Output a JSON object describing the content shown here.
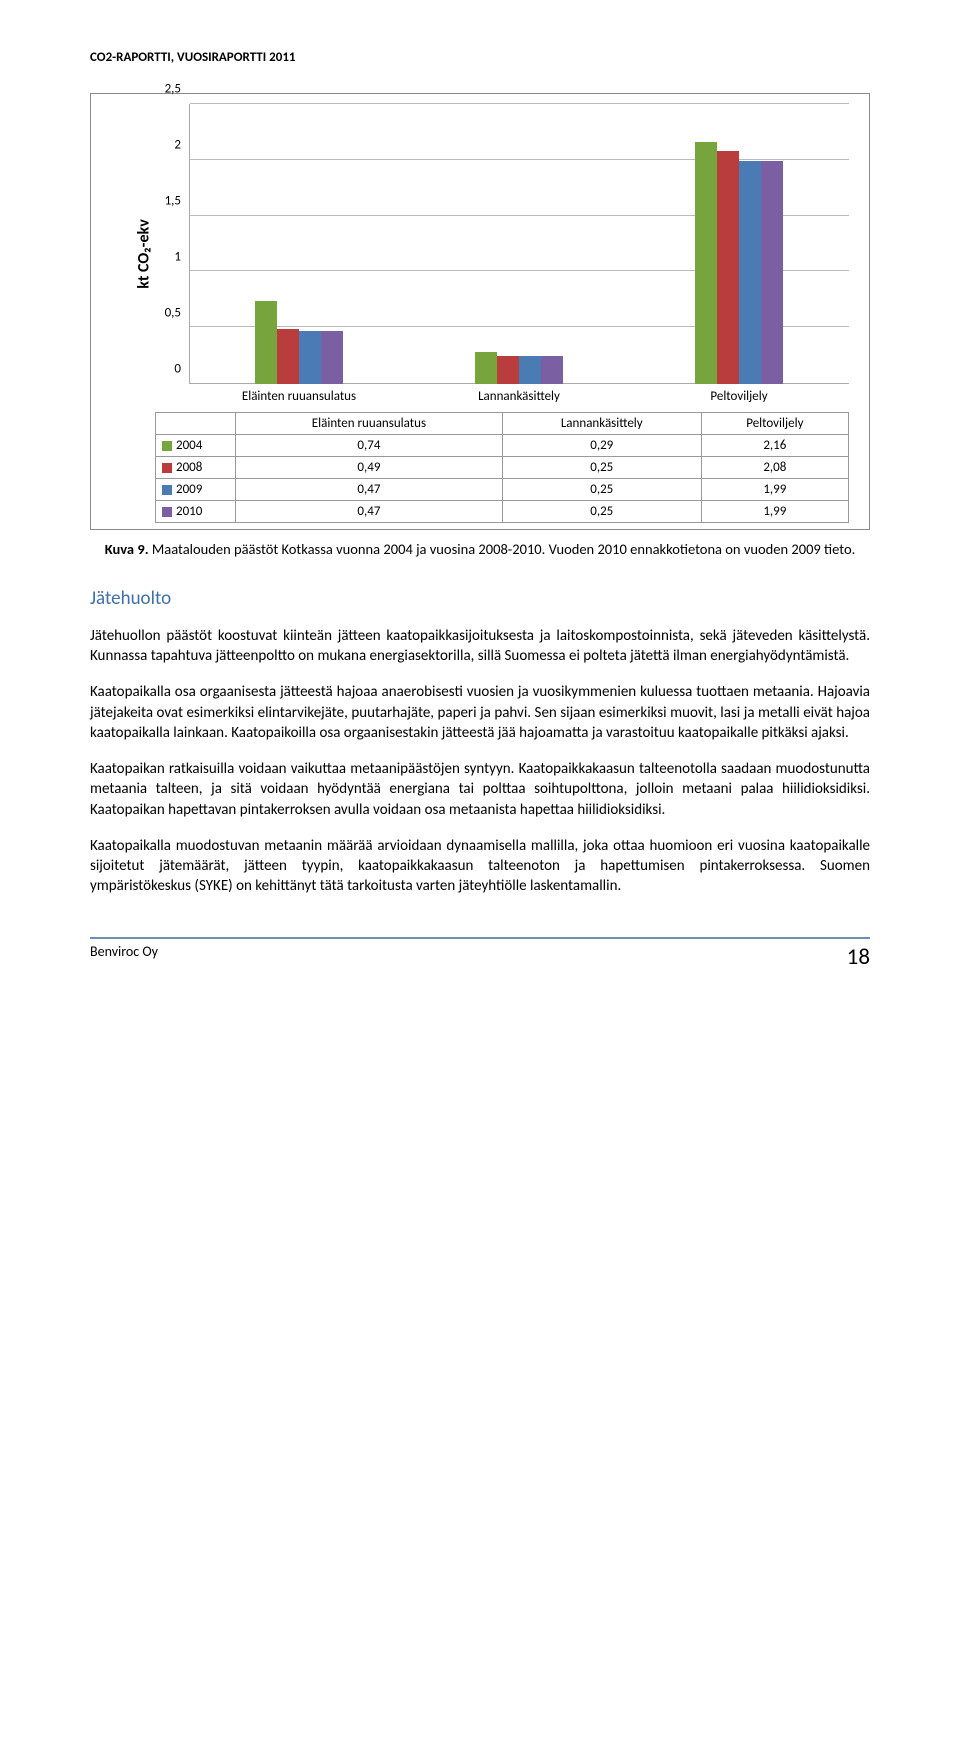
{
  "header": {
    "title": "CO2-RAPORTTI, VUOSIRAPORTTI 2011"
  },
  "chart": {
    "type": "bar",
    "yaxis_label": "kt CO₂-ekv",
    "ylim_max": 2.5,
    "ytick_step": 0.5,
    "yticks": [
      "0",
      "0,5",
      "1",
      "1,5",
      "2",
      "2,5"
    ],
    "categories": [
      "Eläinten ruuansulatus",
      "Lannankäsittely",
      "Peltoviljely"
    ],
    "series": [
      {
        "year": "2004",
        "color": "#78a43e",
        "values": [
          0.74,
          0.29,
          2.16
        ]
      },
      {
        "year": "2008",
        "color": "#ba3d3d",
        "values": [
          0.49,
          0.25,
          2.08
        ]
      },
      {
        "year": "2009",
        "color": "#4a7bb5",
        "values": [
          0.47,
          0.25,
          1.99
        ]
      },
      {
        "year": "2010",
        "color": "#7b5fa3",
        "values": [
          0.47,
          0.25,
          1.99
        ]
      }
    ],
    "table_values": [
      [
        "0,74",
        "0,29",
        "2,16"
      ],
      [
        "0,49",
        "0,25",
        "2,08"
      ],
      [
        "0,47",
        "0,25",
        "1,99"
      ],
      [
        "0,47",
        "0,25",
        "1,99"
      ]
    ],
    "grid_color": "#bbbbbb",
    "background_color": "#ffffff"
  },
  "caption": {
    "label": "Kuva 9.",
    "text": " Maatalouden päästöt Kotkassa vuonna 2004 ja vuosina 2008-2010. Vuoden 2010 ennakkotietona on vuoden 2009 tieto."
  },
  "section_heading": "Jätehuolto",
  "paragraphs": [
    "Jätehuollon päästöt koostuvat kiinteän jätteen kaatopaikkasijoituksesta ja laitoskompostoinnista, sekä jäteveden käsittelystä. Kunnassa tapahtuva jätteenpoltto on mukana energiasektorilla, sillä Suomessa ei polteta jätettä ilman energiahyödyntämistä.",
    "Kaatopaikalla osa orgaanisesta jätteestä hajoaa anaerobisesti vuosien ja vuosikymmenien kuluessa tuottaen metaania. Hajoavia jätejakeita ovat esimerkiksi elintarvikejäte, puutarhajäte, paperi ja pahvi. Sen sijaan esimerkiksi muovit, lasi ja metalli eivät hajoa kaatopaikalla lainkaan. Kaatopaikoilla osa orgaanisestakin jätteestä jää hajoamatta ja varastoituu kaatopaikalle pitkäksi ajaksi.",
    "Kaatopaikan ratkaisuilla voidaan vaikuttaa metaanipäästöjen syntyyn. Kaatopaikkakaasun talteenotolla saadaan muodostunutta metaania talteen, ja sitä voidaan hyödyntää energiana tai polttaa soihtupolttona, jolloin metaani palaa hiilidioksidiksi. Kaatopaikan hapettavan pintakerroksen avulla voidaan osa metaanista hapettaa hiilidioksidiksi.",
    "Kaatopaikalla muodostuvan metaanin määrää arvioidaan dynaamisella mallilla, joka ottaa huomioon eri vuosina kaatopaikalle sijoitetut jätemäärät, jätteen tyypin, kaatopaikkakaasun talteenoton ja hapettumisen pintakerroksessa. Suomen ympäristökeskus (SYKE) on kehittänyt tätä tarkoitusta varten jäteyhtiölle laskentamallin."
  ],
  "footer": {
    "company": "Benviroc Oy",
    "page": "18"
  }
}
